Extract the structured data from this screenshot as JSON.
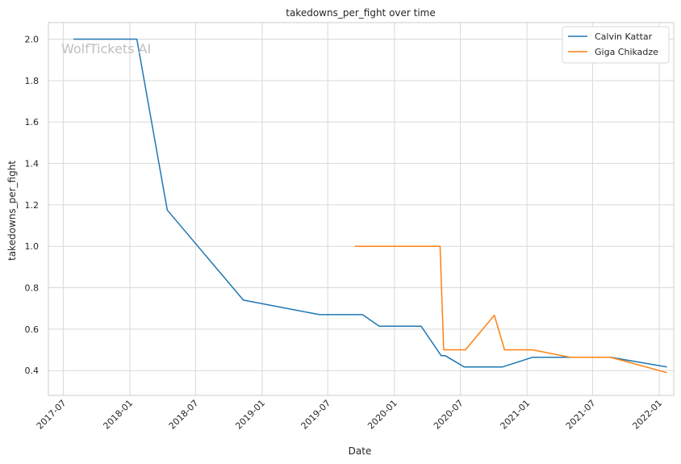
{
  "chart_data": {
    "type": "line",
    "title": "takedowns_per_fight over time",
    "xlabel": "Date",
    "ylabel": "takedowns_per_fight",
    "watermark": "WolfTickets AI",
    "x_ticks": [
      "2017-07",
      "2018-01",
      "2018-07",
      "2019-01",
      "2019-07",
      "2020-01",
      "2020-07",
      "2021-01",
      "2021-07",
      "2022-01"
    ],
    "y_ticks": [
      "0.4",
      "0.6",
      "0.8",
      "1.0",
      "1.2",
      "1.4",
      "1.6",
      "1.8",
      "2.0"
    ],
    "xlim": [
      "2017-05-21",
      "2022-02-10"
    ],
    "ylim": [
      0.28,
      2.08
    ],
    "grid": true,
    "legend_position": "top-right",
    "series": [
      {
        "name": "Calvin Kattar",
        "color": "#1f77b4",
        "points": [
          [
            "2017-07-29",
            2.0
          ],
          [
            "2018-01-20",
            2.0
          ],
          [
            "2018-04-14",
            1.175
          ],
          [
            "2018-11-10",
            0.74
          ],
          [
            "2019-06-08",
            0.67
          ],
          [
            "2019-10-05",
            0.67
          ],
          [
            "2019-11-20",
            0.614
          ],
          [
            "2020-03-15",
            0.614
          ],
          [
            "2020-05-09",
            0.472
          ],
          [
            "2020-05-20",
            0.472
          ],
          [
            "2020-07-12",
            0.417
          ],
          [
            "2020-10-25",
            0.417
          ],
          [
            "2021-01-16",
            0.464
          ],
          [
            "2021-08-20",
            0.464
          ],
          [
            "2022-01-22",
            0.417
          ]
        ]
      },
      {
        "name": "Giga Chikadze",
        "color": "#ff7f0e",
        "points": [
          [
            "2019-09-14",
            1.0
          ],
          [
            "2020-05-06",
            1.0
          ],
          [
            "2020-05-16",
            0.5
          ],
          [
            "2020-07-15",
            0.5
          ],
          [
            "2020-10-03",
            0.667
          ],
          [
            "2020-10-31",
            0.5
          ],
          [
            "2021-01-16",
            0.5
          ],
          [
            "2021-05-01",
            0.464
          ],
          [
            "2021-08-20",
            0.464
          ],
          [
            "2022-01-22",
            0.39
          ]
        ]
      }
    ]
  }
}
